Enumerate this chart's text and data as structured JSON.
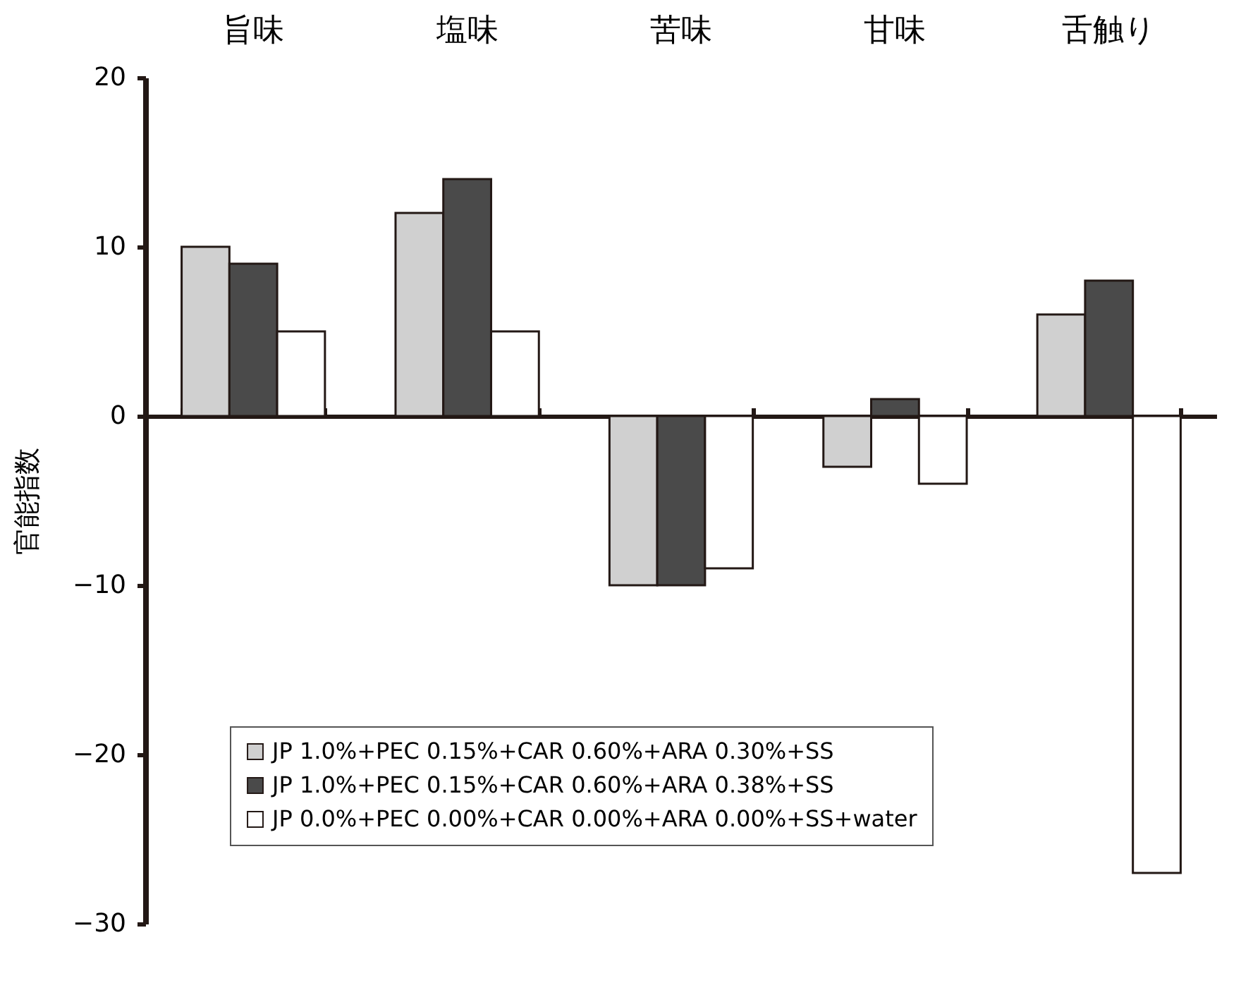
{
  "chart_data": {
    "type": "bar",
    "categories": [
      "旨味",
      "塩味",
      "苦味",
      "甘味",
      "舌触り"
    ],
    "ylabel": "官能指数",
    "ylim": [
      -30,
      20
    ],
    "yticks": [
      -30,
      -20,
      -10,
      0,
      10,
      20
    ],
    "legend": "bottom left",
    "series": [
      {
        "name": "JP 1.0%+PEC 0.15%+CAR 0.60%+ARA 0.30%+SS",
        "color": "#d0d0d0",
        "values": [
          10,
          12,
          -10,
          -3,
          6
        ]
      },
      {
        "name": "JP 1.0%+PEC 0.15%+CAR 0.60%+ARA 0.38%+SS",
        "color": "#4a4a4a",
        "values": [
          9,
          14,
          -10,
          1,
          8
        ]
      },
      {
        "name": "JP 0.0%+PEC 0.00%+CAR 0.00%+ARA 0.00%+SS+water",
        "color": "#ffffff",
        "values": [
          5,
          5,
          -9,
          -4,
          -27
        ]
      }
    ]
  }
}
